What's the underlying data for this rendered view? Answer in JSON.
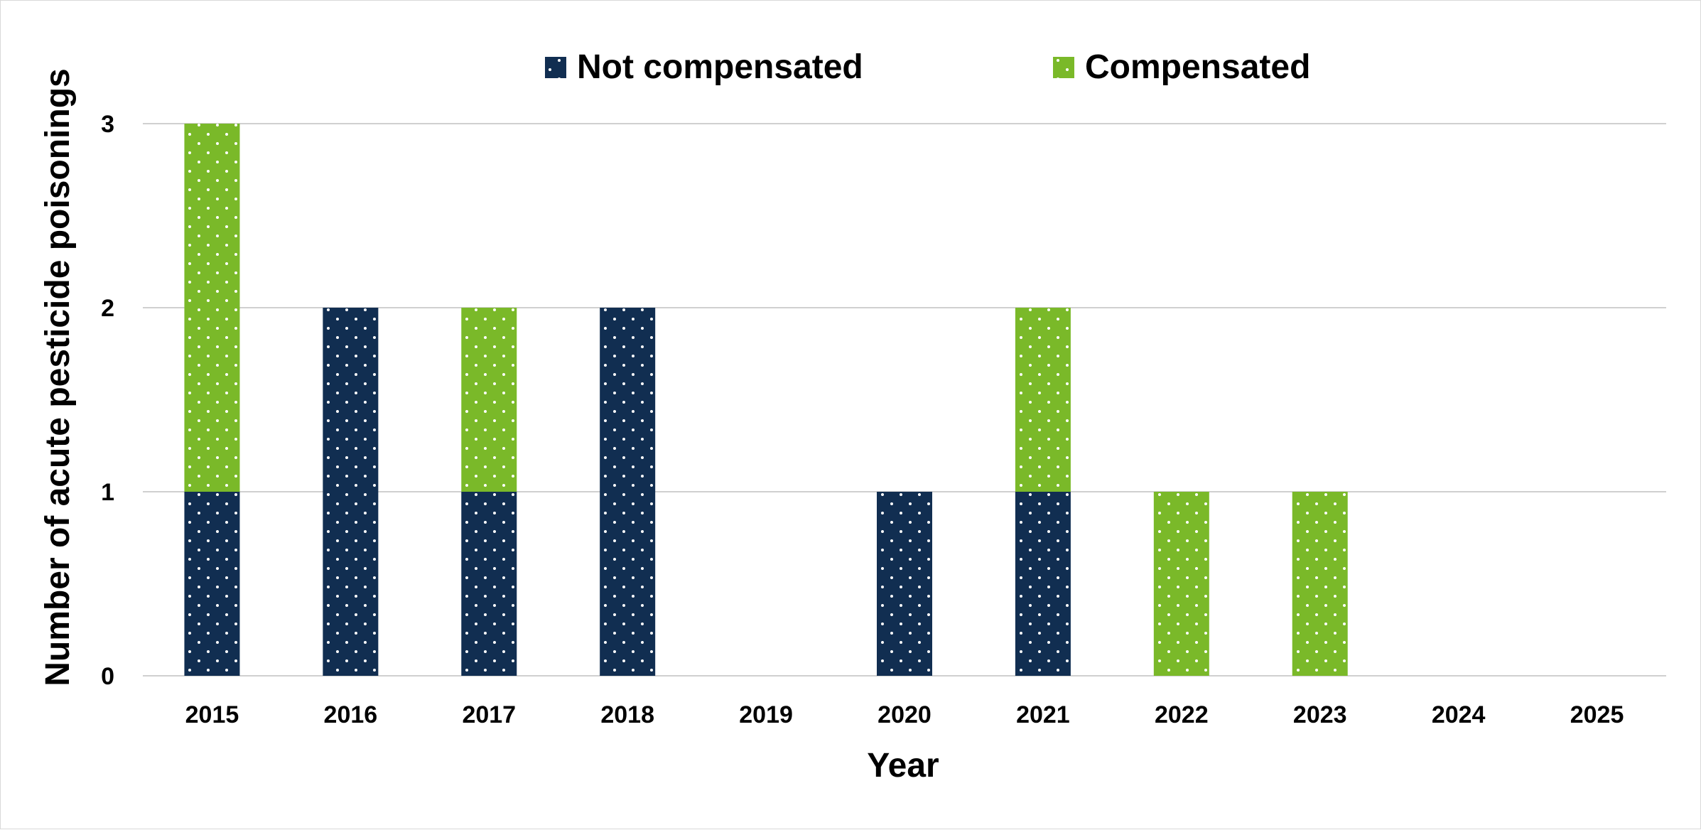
{
  "chart_data": {
    "type": "bar",
    "stacked": true,
    "title": "",
    "xlabel": "Year",
    "ylabel": "Number of acute pesticide poisonings",
    "categories": [
      "2015",
      "2016",
      "2017",
      "2018",
      "2019",
      "2020",
      "2021",
      "2022",
      "2023",
      "2024",
      "2025"
    ],
    "series": [
      {
        "name": "Not compensated",
        "color": "#112e51",
        "values": [
          1,
          2,
          1,
          2,
          0,
          1,
          1,
          0,
          0,
          0,
          0
        ]
      },
      {
        "name": "Compensated",
        "color": "#7ab929",
        "values": [
          2,
          0,
          1,
          0,
          0,
          0,
          1,
          1,
          1,
          0,
          0
        ]
      }
    ],
    "ylim": [
      0,
      3
    ],
    "yticks": [
      "0",
      "1",
      "2",
      "3"
    ],
    "grid": true,
    "legend": "top-center",
    "pattern": "dotted"
  }
}
